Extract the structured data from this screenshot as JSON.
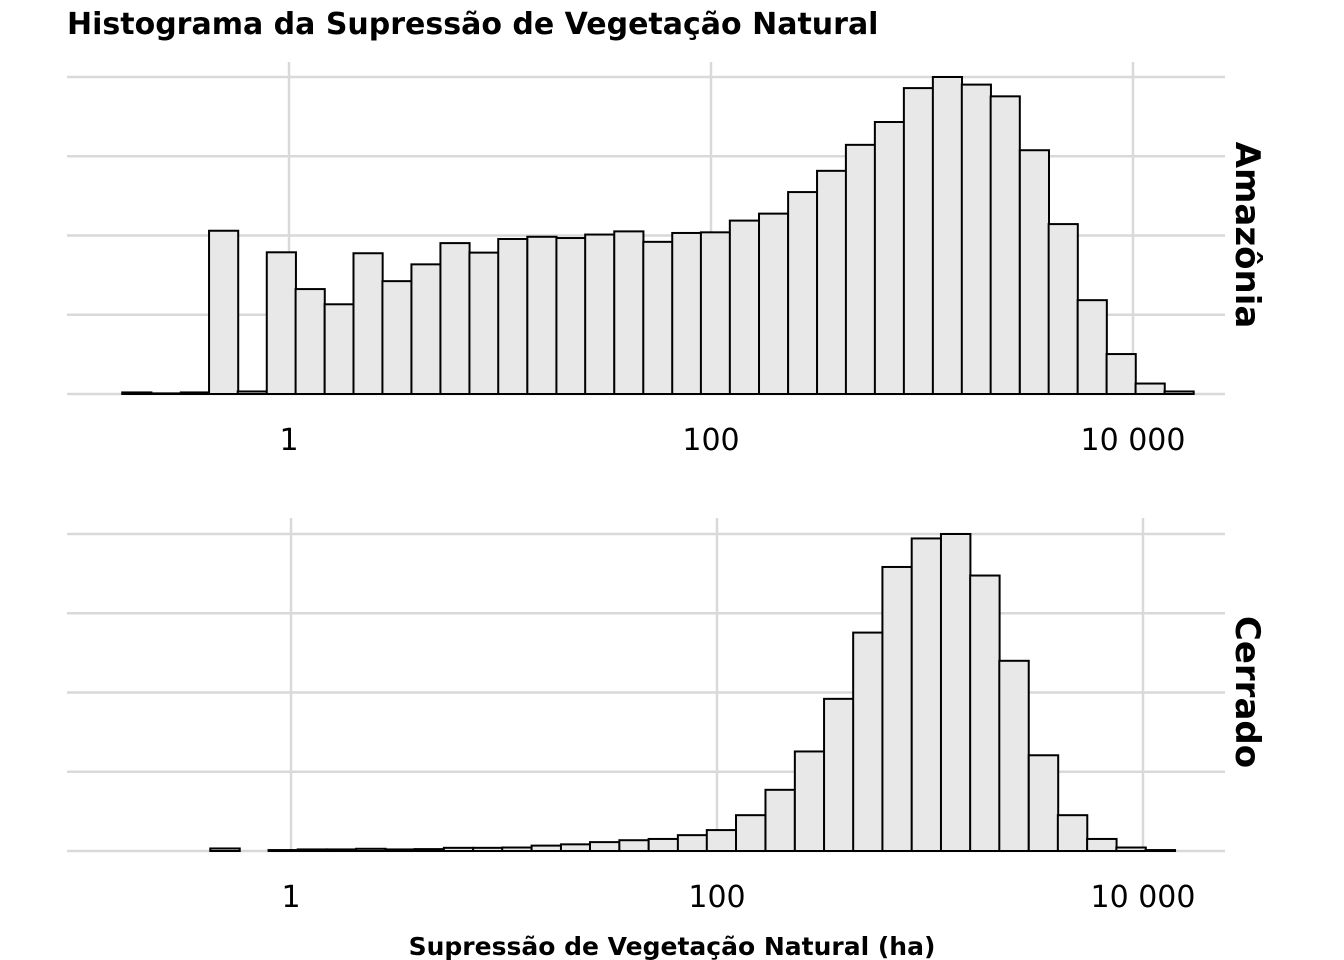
{
  "chart_data": {
    "type": "bar",
    "title": "Histograma da Supressão de Vegetação Natural",
    "xlabel": "Supressão de Vegetação Natural (ha)",
    "ylabel": "",
    "x_scale": "log10",
    "x_range": [
      0.15,
      25000
    ],
    "x_ticks": [
      1,
      100,
      10000
    ],
    "x_tick_labels": [
      "1",
      "100",
      "10 000"
    ],
    "bin_width_log10": 0.1382,
    "grid": true,
    "y_tick_labels_shown": false,
    "bar_fill": "#e8e8e8",
    "bar_stroke": "#000000",
    "panels": [
      {
        "name": "Amazônia",
        "bin_centers": [
          0.19,
          0.26,
          0.36,
          0.49,
          0.67,
          0.92,
          1.26,
          1.73,
          2.37,
          3.25,
          4.46,
          6.12,
          8.4,
          11.5,
          15.8,
          21.7,
          29.7,
          40.8,
          56.0,
          76.8,
          105,
          144,
          198,
          272,
          373,
          511,
          701,
          962,
          1320,
          1810,
          2480,
          3410,
          4670,
          6410,
          8790,
          12060,
          16540
        ],
        "values": [
          0.5,
          0.2,
          0.5,
          51.5,
          0.8,
          44.7,
          33.1,
          28.3,
          44.4,
          35.6,
          40.9,
          47.6,
          44.6,
          48.9,
          49.6,
          49.2,
          50.3,
          51.3,
          48.0,
          50.8,
          51.0,
          54.7,
          56.9,
          63.7,
          70.4,
          78.6,
          85.8,
          96.5,
          100.0,
          97.6,
          93.9,
          76.9,
          53.6,
          29.6,
          12.6,
          3.3,
          0.8
        ]
      },
      {
        "name": "Cerrado",
        "bin_centers": [
          0.19,
          0.26,
          0.36,
          0.49,
          0.67,
          0.92,
          1.26,
          1.73,
          2.37,
          3.25,
          4.46,
          6.12,
          8.4,
          11.5,
          15.8,
          21.7,
          29.7,
          40.8,
          56.0,
          76.8,
          105,
          144,
          198,
          272,
          373,
          511,
          701,
          962,
          1320,
          1810,
          2480,
          3410,
          4670,
          6410,
          8790,
          12060,
          16540
        ],
        "values": [
          0.0,
          0.0,
          0.0,
          0.8,
          0.0,
          0.3,
          0.5,
          0.5,
          0.7,
          0.5,
          0.6,
          1.0,
          1.0,
          1.1,
          1.7,
          2.1,
          2.8,
          3.4,
          3.8,
          5.0,
          6.6,
          11.3,
          19.3,
          31.4,
          48.0,
          68.9,
          89.6,
          98.6,
          100.0,
          86.9,
          60.0,
          30.2,
          11.3,
          3.8,
          1.1,
          0.3,
          0.0
        ]
      }
    ]
  }
}
